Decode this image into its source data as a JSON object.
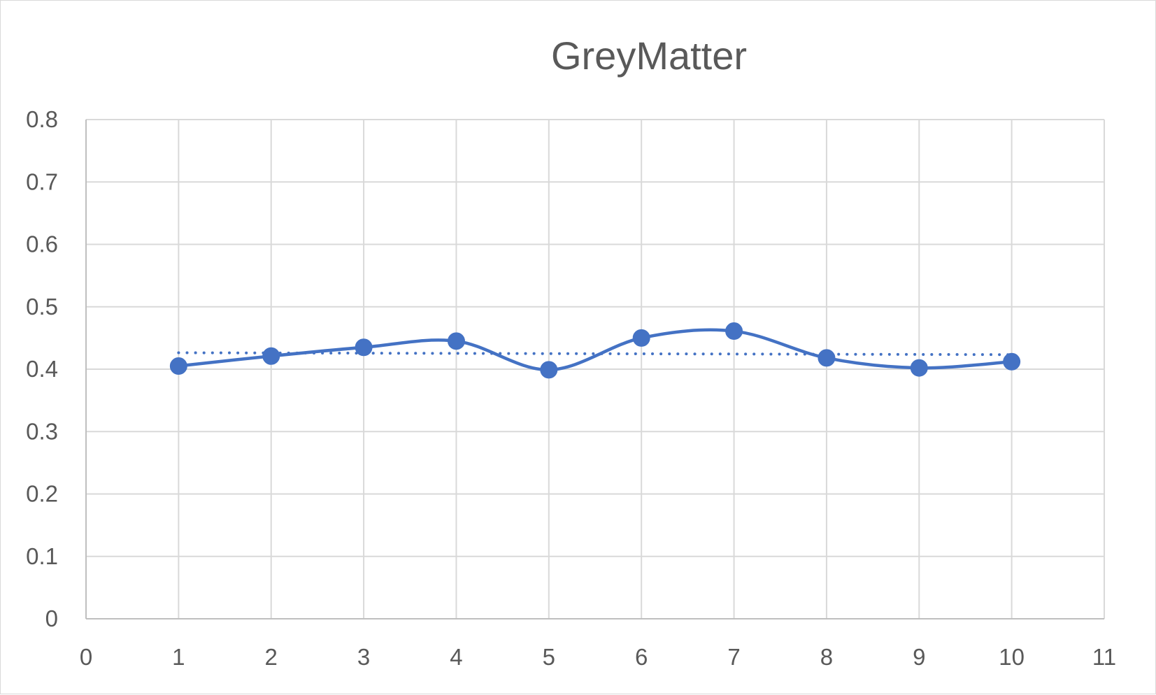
{
  "chart_data": {
    "type": "scatter",
    "title": "GreyMatter",
    "xlabel": "",
    "ylabel": "",
    "xlim": [
      0,
      11
    ],
    "ylim": [
      0,
      0.8
    ],
    "x_ticks": [
      "0",
      "1",
      "2",
      "3",
      "4",
      "5",
      "6",
      "7",
      "8",
      "9",
      "10",
      "11"
    ],
    "y_ticks": [
      "0",
      "0.1",
      "0.2",
      "0.3",
      "0.4",
      "0.5",
      "0.6",
      "0.7",
      "0.8"
    ],
    "grid": true,
    "legend": "none",
    "series": [
      {
        "x": [
          1,
          2,
          3,
          4,
          5,
          6,
          7,
          8,
          9,
          10
        ],
        "values": [
          0.405,
          0.421,
          0.435,
          0.445,
          0.399,
          0.45,
          0.461,
          0.418,
          0.402,
          0.412
        ],
        "line": "smooth",
        "markers": true,
        "trendline": "linear",
        "color": "#4472c4"
      }
    ],
    "colors": {
      "series": "#4472c4",
      "grid": "#d9d9d9",
      "axis_line": "#bfbfbf",
      "text": "#595959"
    }
  }
}
